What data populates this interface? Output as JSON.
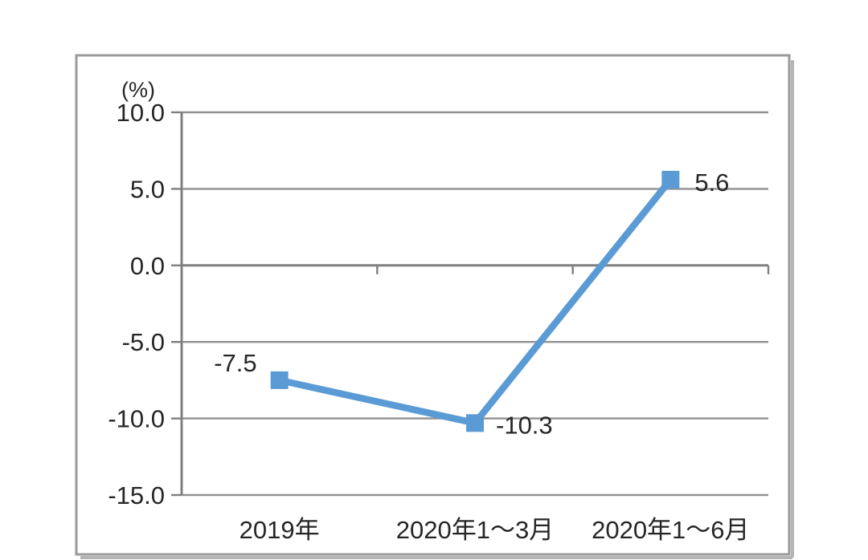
{
  "chart_data": {
    "type": "line",
    "title": "",
    "unit_label": "(%)",
    "categories": [
      "2019年",
      "2020年1～3月",
      "2020年1～6月"
    ],
    "values": [
      -7.5,
      -10.3,
      5.6
    ],
    "data_labels": [
      "-7.5",
      "-10.3",
      "5.6"
    ],
    "y_ticks": [
      10.0,
      5.0,
      0.0,
      -5.0,
      -10.0,
      -15.0
    ],
    "y_tick_labels": [
      "10.0",
      "5.0",
      "0.0",
      "-5.0",
      "-10.0",
      "-15.0"
    ],
    "ylim": [
      -15,
      10
    ],
    "grid": "horizontal",
    "legend": "none",
    "marker_shape": "square",
    "line_color": "#5B9BD5"
  },
  "colors": {
    "line": "#5B9BD5",
    "grid": "#919191",
    "axis": "#7f7f7f",
    "text": "#262626",
    "frame_border": "#9a9a9a",
    "background": "#ffffff"
  }
}
